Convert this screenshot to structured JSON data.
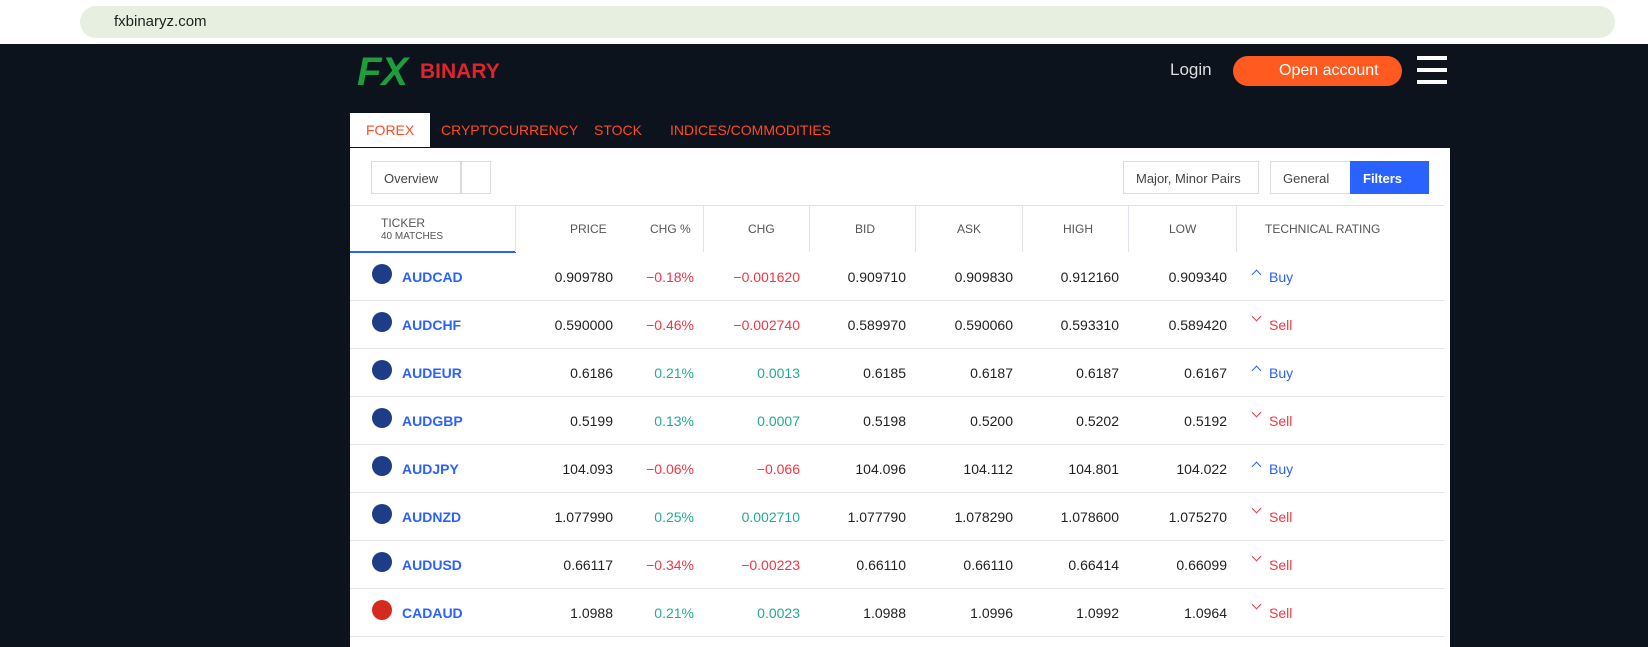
{
  "browser": {
    "url": "fxbinaryz.com"
  },
  "header": {
    "logo_mark": "FX",
    "logo_text": "BINARY",
    "login": "Login",
    "open_account": "Open account"
  },
  "tabs": [
    "FOREX",
    "CRYPTOCURRENCY",
    "STOCK",
    "INDICES/COMMODITIES"
  ],
  "toolbar": {
    "view": "Overview",
    "pairs": "Major, Minor Pairs",
    "group": "General",
    "filters": "Filters"
  },
  "table": {
    "ticker_header": "TICKER",
    "matches": "40 MATCHES",
    "columns": [
      "PRICE",
      "CHG %",
      "CHG",
      "BID",
      "ASK",
      "HIGH",
      "LOW",
      "TECHNICAL RATING"
    ],
    "rows": [
      [
        "AUDCAD",
        "0.909780",
        "−0.18%",
        "−0.001620",
        "0.909710",
        "0.909830",
        "0.912160",
        "0.909340",
        "Buy"
      ],
      [
        "AUDCHF",
        "0.590000",
        "−0.46%",
        "−0.002740",
        "0.589970",
        "0.590060",
        "0.593310",
        "0.589420",
        "Sell"
      ],
      [
        "AUDEUR",
        "0.6186",
        "0.21%",
        "0.0013",
        "0.6185",
        "0.6187",
        "0.6187",
        "0.6167",
        "Buy"
      ],
      [
        "AUDGBP",
        "0.5199",
        "0.13%",
        "0.0007",
        "0.5198",
        "0.5200",
        "0.5202",
        "0.5192",
        "Sell"
      ],
      [
        "AUDJPY",
        "104.093",
        "−0.06%",
        "−0.066",
        "104.096",
        "104.112",
        "104.801",
        "104.022",
        "Buy"
      ],
      [
        "AUDNZD",
        "1.077990",
        "0.25%",
        "0.002710",
        "1.077790",
        "1.078290",
        "1.078600",
        "1.075270",
        "Sell"
      ],
      [
        "AUDUSD",
        "0.66117",
        "−0.34%",
        "−0.00223",
        "0.66110",
        "0.66110",
        "0.66414",
        "0.66099",
        "Sell"
      ],
      [
        "CADAUD",
        "1.0988",
        "0.21%",
        "0.0023",
        "1.0988",
        "1.0996",
        "1.0992",
        "1.0964",
        "Sell"
      ]
    ]
  }
}
